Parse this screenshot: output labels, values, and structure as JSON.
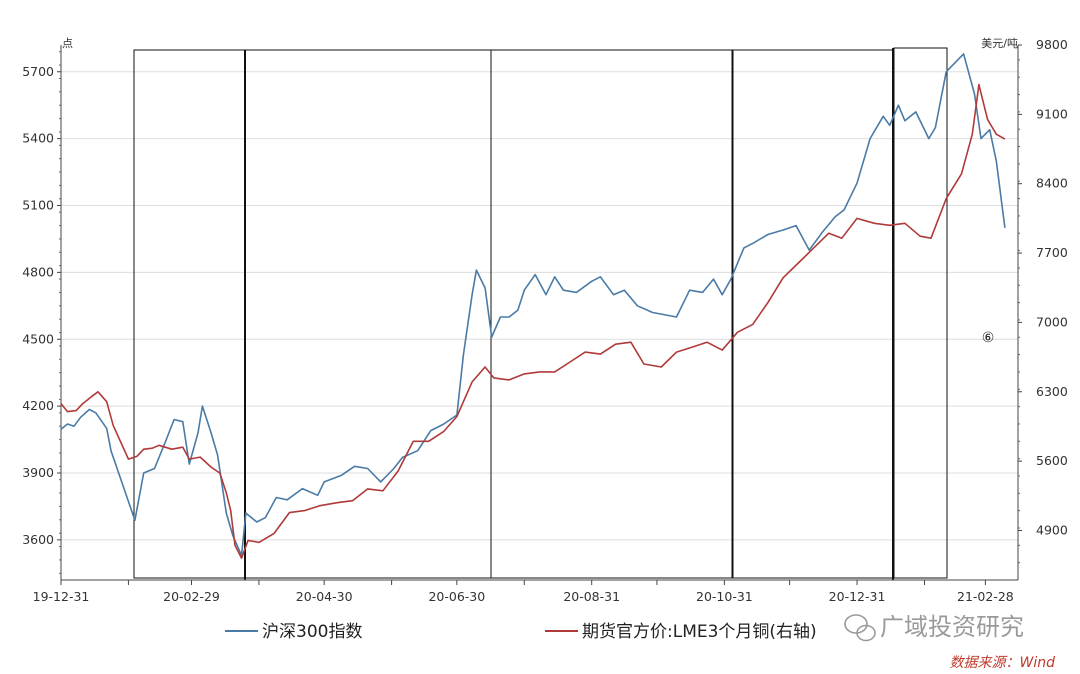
{
  "chart_data": {
    "type": "line",
    "left_unit": "点",
    "right_unit": "美元/吨",
    "x_tick_labels": [
      "19-12-31",
      "20-02-29",
      "20-04-30",
      "20-06-30",
      "20-08-31",
      "20-10-31",
      "20-12-31",
      "21-02-28"
    ],
    "y_left_ticks": [
      3600,
      3900,
      4200,
      4500,
      4800,
      5100,
      5400,
      5700
    ],
    "y_right_ticks": [
      4900,
      5600,
      6300,
      7000,
      7700,
      8400,
      9100,
      9800
    ],
    "ylim_left": [
      3420,
      5820
    ],
    "ylim_right": [
      4400,
      9800
    ],
    "x_range": [
      "2019-12-31",
      "2021-03-15"
    ],
    "grid": "horizontal",
    "legend_position": "bottom",
    "series": [
      {
        "name": "沪深300指数",
        "axis": "left",
        "color": "#4a7ba7",
        "points": [
          [
            "2019-12-31",
            4096
          ],
          [
            "2020-01-03",
            4120
          ],
          [
            "2020-01-06",
            4110
          ],
          [
            "2020-01-09",
            4150
          ],
          [
            "2020-01-13",
            4185
          ],
          [
            "2020-01-16",
            4170
          ],
          [
            "2020-01-21",
            4100
          ],
          [
            "2020-01-23",
            4000
          ],
          [
            "2020-02-03",
            3688
          ],
          [
            "2020-02-07",
            3900
          ],
          [
            "2020-02-12",
            3920
          ],
          [
            "2020-02-17",
            4040
          ],
          [
            "2020-02-21",
            4140
          ],
          [
            "2020-02-25",
            4130
          ],
          [
            "2020-02-28",
            3940
          ],
          [
            "2020-03-03",
            4080
          ],
          [
            "2020-03-05",
            4200
          ],
          [
            "2020-03-09",
            4080
          ],
          [
            "2020-03-12",
            3980
          ],
          [
            "2020-03-16",
            3720
          ],
          [
            "2020-03-19",
            3620
          ],
          [
            "2020-03-23",
            3530
          ],
          [
            "2020-03-25",
            3720
          ],
          [
            "2020-03-30",
            3680
          ],
          [
            "2020-04-03",
            3700
          ],
          [
            "2020-04-08",
            3790
          ],
          [
            "2020-04-13",
            3780
          ],
          [
            "2020-04-20",
            3830
          ],
          [
            "2020-04-27",
            3800
          ],
          [
            "2020-04-30",
            3860
          ],
          [
            "2020-05-08",
            3890
          ],
          [
            "2020-05-14",
            3930
          ],
          [
            "2020-05-20",
            3920
          ],
          [
            "2020-05-26",
            3860
          ],
          [
            "2020-06-01",
            3920
          ],
          [
            "2020-06-05",
            3970
          ],
          [
            "2020-06-12",
            4000
          ],
          [
            "2020-06-18",
            4090
          ],
          [
            "2020-06-24",
            4120
          ],
          [
            "2020-06-30",
            4160
          ],
          [
            "2020-07-03",
            4430
          ],
          [
            "2020-07-07",
            4700
          ],
          [
            "2020-07-09",
            4810
          ],
          [
            "2020-07-13",
            4730
          ],
          [
            "2020-07-16",
            4510
          ],
          [
            "2020-07-20",
            4600
          ],
          [
            "2020-07-24",
            4600
          ],
          [
            "2020-07-28",
            4630
          ],
          [
            "2020-07-31",
            4720
          ],
          [
            "2020-08-05",
            4790
          ],
          [
            "2020-08-10",
            4700
          ],
          [
            "2020-08-14",
            4780
          ],
          [
            "2020-08-18",
            4720
          ],
          [
            "2020-08-24",
            4710
          ],
          [
            "2020-08-31",
            4760
          ],
          [
            "2020-09-04",
            4780
          ],
          [
            "2020-09-10",
            4700
          ],
          [
            "2020-09-15",
            4720
          ],
          [
            "2020-09-21",
            4650
          ],
          [
            "2020-09-28",
            4620
          ],
          [
            "2020-10-09",
            4600
          ],
          [
            "2020-10-15",
            4720
          ],
          [
            "2020-10-21",
            4710
          ],
          [
            "2020-10-26",
            4770
          ],
          [
            "2020-10-30",
            4700
          ],
          [
            "2020-11-03",
            4770
          ],
          [
            "2020-11-09",
            4910
          ],
          [
            "2020-11-13",
            4930
          ],
          [
            "2020-11-20",
            4970
          ],
          [
            "2020-11-27",
            4990
          ],
          [
            "2020-12-03",
            5010
          ],
          [
            "2020-12-09",
            4900
          ],
          [
            "2020-12-15",
            4980
          ],
          [
            "2020-12-21",
            5050
          ],
          [
            "2020-12-25",
            5080
          ],
          [
            "2020-12-31",
            5200
          ],
          [
            "2021-01-06",
            5400
          ],
          [
            "2021-01-12",
            5500
          ],
          [
            "2021-01-15",
            5460
          ],
          [
            "2021-01-19",
            5550
          ],
          [
            "2021-01-22",
            5480
          ],
          [
            "2021-01-27",
            5520
          ],
          [
            "2021-02-02",
            5400
          ],
          [
            "2021-02-05",
            5450
          ],
          [
            "2021-02-10",
            5700
          ],
          [
            "2021-02-18",
            5780
          ],
          [
            "2021-02-23",
            5600
          ],
          [
            "2021-02-26",
            5400
          ],
          [
            "2021-03-02",
            5440
          ],
          [
            "2021-03-05",
            5300
          ],
          [
            "2021-03-09",
            5000
          ]
        ]
      },
      {
        "name": "期货官方价:LME3个月铜(右轴)",
        "axis": "right",
        "color": "#b03a3a",
        "points": [
          [
            "2019-12-31",
            6180
          ],
          [
            "2020-01-03",
            6100
          ],
          [
            "2020-01-07",
            6110
          ],
          [
            "2020-01-10",
            6180
          ],
          [
            "2020-01-14",
            6250
          ],
          [
            "2020-01-17",
            6300
          ],
          [
            "2020-01-21",
            6200
          ],
          [
            "2020-01-24",
            5960
          ],
          [
            "2020-01-31",
            5620
          ],
          [
            "2020-02-04",
            5650
          ],
          [
            "2020-02-07",
            5720
          ],
          [
            "2020-02-11",
            5730
          ],
          [
            "2020-02-14",
            5760
          ],
          [
            "2020-02-20",
            5720
          ],
          [
            "2020-02-25",
            5740
          ],
          [
            "2020-02-28",
            5620
          ],
          [
            "2020-03-04",
            5640
          ],
          [
            "2020-03-09",
            5540
          ],
          [
            "2020-03-13",
            5480
          ],
          [
            "2020-03-16",
            5280
          ],
          [
            "2020-03-18",
            5100
          ],
          [
            "2020-03-20",
            4750
          ],
          [
            "2020-03-23",
            4620
          ],
          [
            "2020-03-26",
            4800
          ],
          [
            "2020-03-31",
            4780
          ],
          [
            "2020-04-07",
            4870
          ],
          [
            "2020-04-14",
            5080
          ],
          [
            "2020-04-21",
            5100
          ],
          [
            "2020-04-28",
            5150
          ],
          [
            "2020-05-06",
            5180
          ],
          [
            "2020-05-13",
            5200
          ],
          [
            "2020-05-20",
            5320
          ],
          [
            "2020-05-27",
            5300
          ],
          [
            "2020-06-03",
            5500
          ],
          [
            "2020-06-10",
            5800
          ],
          [
            "2020-06-17",
            5800
          ],
          [
            "2020-06-24",
            5900
          ],
          [
            "2020-06-30",
            6050
          ],
          [
            "2020-07-03",
            6200
          ],
          [
            "2020-07-07",
            6400
          ],
          [
            "2020-07-13",
            6550
          ],
          [
            "2020-07-17",
            6440
          ],
          [
            "2020-07-24",
            6420
          ],
          [
            "2020-07-31",
            6480
          ],
          [
            "2020-08-07",
            6500
          ],
          [
            "2020-08-14",
            6500
          ],
          [
            "2020-08-21",
            6600
          ],
          [
            "2020-08-28",
            6700
          ],
          [
            "2020-09-04",
            6680
          ],
          [
            "2020-09-11",
            6780
          ],
          [
            "2020-09-18",
            6800
          ],
          [
            "2020-09-24",
            6580
          ],
          [
            "2020-10-02",
            6550
          ],
          [
            "2020-10-09",
            6700
          ],
          [
            "2020-10-16",
            6750
          ],
          [
            "2020-10-23",
            6800
          ],
          [
            "2020-10-30",
            6720
          ],
          [
            "2020-11-06",
            6900
          ],
          [
            "2020-11-13",
            6980
          ],
          [
            "2020-11-20",
            7200
          ],
          [
            "2020-11-27",
            7450
          ],
          [
            "2020-12-04",
            7600
          ],
          [
            "2020-12-11",
            7750
          ],
          [
            "2020-12-18",
            7900
          ],
          [
            "2020-12-24",
            7850
          ],
          [
            "2020-12-31",
            8050
          ],
          [
            "2021-01-08",
            8000
          ],
          [
            "2021-01-15",
            7980
          ],
          [
            "2021-01-22",
            8000
          ],
          [
            "2021-01-29",
            7870
          ],
          [
            "2021-02-03",
            7850
          ],
          [
            "2021-02-10",
            8250
          ],
          [
            "2021-02-17",
            8500
          ],
          [
            "2021-02-22",
            8900
          ],
          [
            "2021-02-25",
            9400
          ],
          [
            "2021-03-01",
            9050
          ],
          [
            "2021-03-05",
            8900
          ],
          [
            "2021-03-09",
            8850
          ]
        ]
      }
    ]
  },
  "watermark": "广域投资研究",
  "source_note": "数据来源：Wind",
  "annotation_mark": "⑥"
}
